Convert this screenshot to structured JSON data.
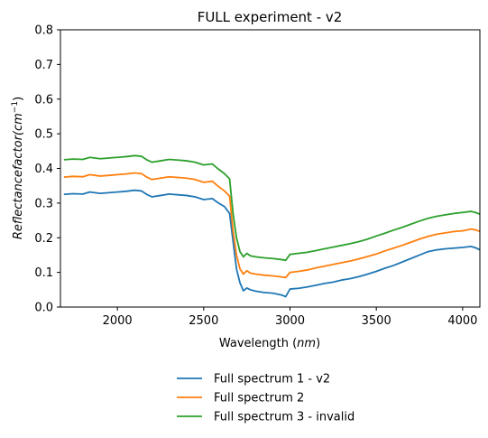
{
  "chart_data": {
    "type": "line",
    "title": "FULL experiment - v2",
    "xlabel_main": "Wavelength (",
    "xlabel_italic": "nm",
    "xlabel_tail": ")",
    "ylabel_main": "Reflectancefactor(",
    "ylabel_unit": "cm",
    "ylabel_exp": "−1",
    "ylabel_tail": ")",
    "xlim": [
      1670,
      4100
    ],
    "ylim": [
      0,
      0.8
    ],
    "xticks": [
      2000,
      2500,
      3000,
      3500,
      4000
    ],
    "yticks": [
      0.0,
      0.1,
      0.2,
      0.3,
      0.4,
      0.5,
      0.6,
      0.7,
      0.8
    ],
    "ytick_labels": [
      "0.0",
      "0.1",
      "0.2",
      "0.3",
      "0.4",
      "0.5",
      "0.6",
      "0.7",
      "0.8"
    ],
    "grid": false,
    "legend_position": "below",
    "series": [
      {
        "name": "Full spectrum 1 - v2",
        "color": "#1f77b4",
        "x": [
          1690,
          1740,
          1800,
          1840,
          1900,
          1950,
          2000,
          2050,
          2100,
          2140,
          2170,
          2200,
          2250,
          2300,
          2350,
          2400,
          2450,
          2500,
          2550,
          2580,
          2620,
          2650,
          2670,
          2690,
          2710,
          2730,
          2750,
          2770,
          2800,
          2850,
          2900,
          2950,
          2975,
          3000,
          3050,
          3100,
          3150,
          3200,
          3250,
          3300,
          3350,
          3400,
          3450,
          3500,
          3550,
          3600,
          3650,
          3700,
          3750,
          3800,
          3850,
          3900,
          3950,
          4000,
          4050,
          4080,
          4100
        ],
        "values": [
          0.325,
          0.327,
          0.326,
          0.332,
          0.328,
          0.33,
          0.332,
          0.334,
          0.337,
          0.335,
          0.325,
          0.318,
          0.322,
          0.326,
          0.324,
          0.322,
          0.318,
          0.31,
          0.313,
          0.302,
          0.29,
          0.27,
          0.19,
          0.11,
          0.07,
          0.047,
          0.055,
          0.05,
          0.046,
          0.042,
          0.04,
          0.035,
          0.03,
          0.052,
          0.054,
          0.058,
          0.063,
          0.068,
          0.072,
          0.078,
          0.082,
          0.088,
          0.095,
          0.103,
          0.112,
          0.12,
          0.13,
          0.14,
          0.15,
          0.16,
          0.165,
          0.168,
          0.17,
          0.172,
          0.175,
          0.17,
          0.165
        ]
      },
      {
        "name": "Full spectrum 2",
        "color": "#ff7f0e",
        "x": [
          1690,
          1740,
          1800,
          1840,
          1900,
          1950,
          2000,
          2050,
          2100,
          2140,
          2170,
          2200,
          2250,
          2300,
          2350,
          2400,
          2450,
          2500,
          2550,
          2580,
          2620,
          2650,
          2670,
          2690,
          2710,
          2730,
          2750,
          2770,
          2800,
          2850,
          2900,
          2950,
          2975,
          3000,
          3050,
          3100,
          3150,
          3200,
          3250,
          3300,
          3350,
          3400,
          3450,
          3500,
          3550,
          3600,
          3650,
          3700,
          3750,
          3800,
          3850,
          3900,
          3950,
          4000,
          4050,
          4080,
          4100
        ],
        "values": [
          0.375,
          0.377,
          0.376,
          0.382,
          0.378,
          0.38,
          0.382,
          0.384,
          0.387,
          0.385,
          0.375,
          0.368,
          0.372,
          0.376,
          0.374,
          0.372,
          0.368,
          0.36,
          0.363,
          0.35,
          0.335,
          0.32,
          0.22,
          0.15,
          0.11,
          0.095,
          0.105,
          0.098,
          0.095,
          0.092,
          0.09,
          0.087,
          0.085,
          0.1,
          0.103,
          0.107,
          0.113,
          0.118,
          0.123,
          0.128,
          0.133,
          0.139,
          0.146,
          0.153,
          0.162,
          0.17,
          0.178,
          0.187,
          0.196,
          0.204,
          0.21,
          0.214,
          0.218,
          0.22,
          0.225,
          0.222,
          0.218
        ]
      },
      {
        "name": "Full spectrum 3 - invalid",
        "color": "#2ca02c",
        "x": [
          1690,
          1740,
          1800,
          1840,
          1900,
          1950,
          2000,
          2050,
          2100,
          2140,
          2170,
          2200,
          2250,
          2300,
          2350,
          2400,
          2450,
          2500,
          2550,
          2580,
          2620,
          2650,
          2670,
          2690,
          2710,
          2730,
          2750,
          2770,
          2800,
          2850,
          2900,
          2950,
          2975,
          3000,
          3050,
          3100,
          3150,
          3200,
          3250,
          3300,
          3350,
          3400,
          3450,
          3500,
          3550,
          3600,
          3650,
          3700,
          3750,
          3800,
          3850,
          3900,
          3950,
          4000,
          4050,
          4080,
          4100
        ],
        "values": [
          0.425,
          0.427,
          0.426,
          0.432,
          0.428,
          0.43,
          0.432,
          0.434,
          0.437,
          0.435,
          0.425,
          0.418,
          0.422,
          0.426,
          0.424,
          0.422,
          0.418,
          0.41,
          0.413,
          0.4,
          0.385,
          0.37,
          0.27,
          0.2,
          0.16,
          0.145,
          0.155,
          0.148,
          0.145,
          0.142,
          0.14,
          0.137,
          0.135,
          0.152,
          0.155,
          0.158,
          0.163,
          0.168,
          0.173,
          0.178,
          0.183,
          0.189,
          0.196,
          0.205,
          0.213,
          0.222,
          0.23,
          0.239,
          0.248,
          0.256,
          0.262,
          0.266,
          0.27,
          0.273,
          0.276,
          0.272,
          0.268
        ]
      }
    ]
  }
}
